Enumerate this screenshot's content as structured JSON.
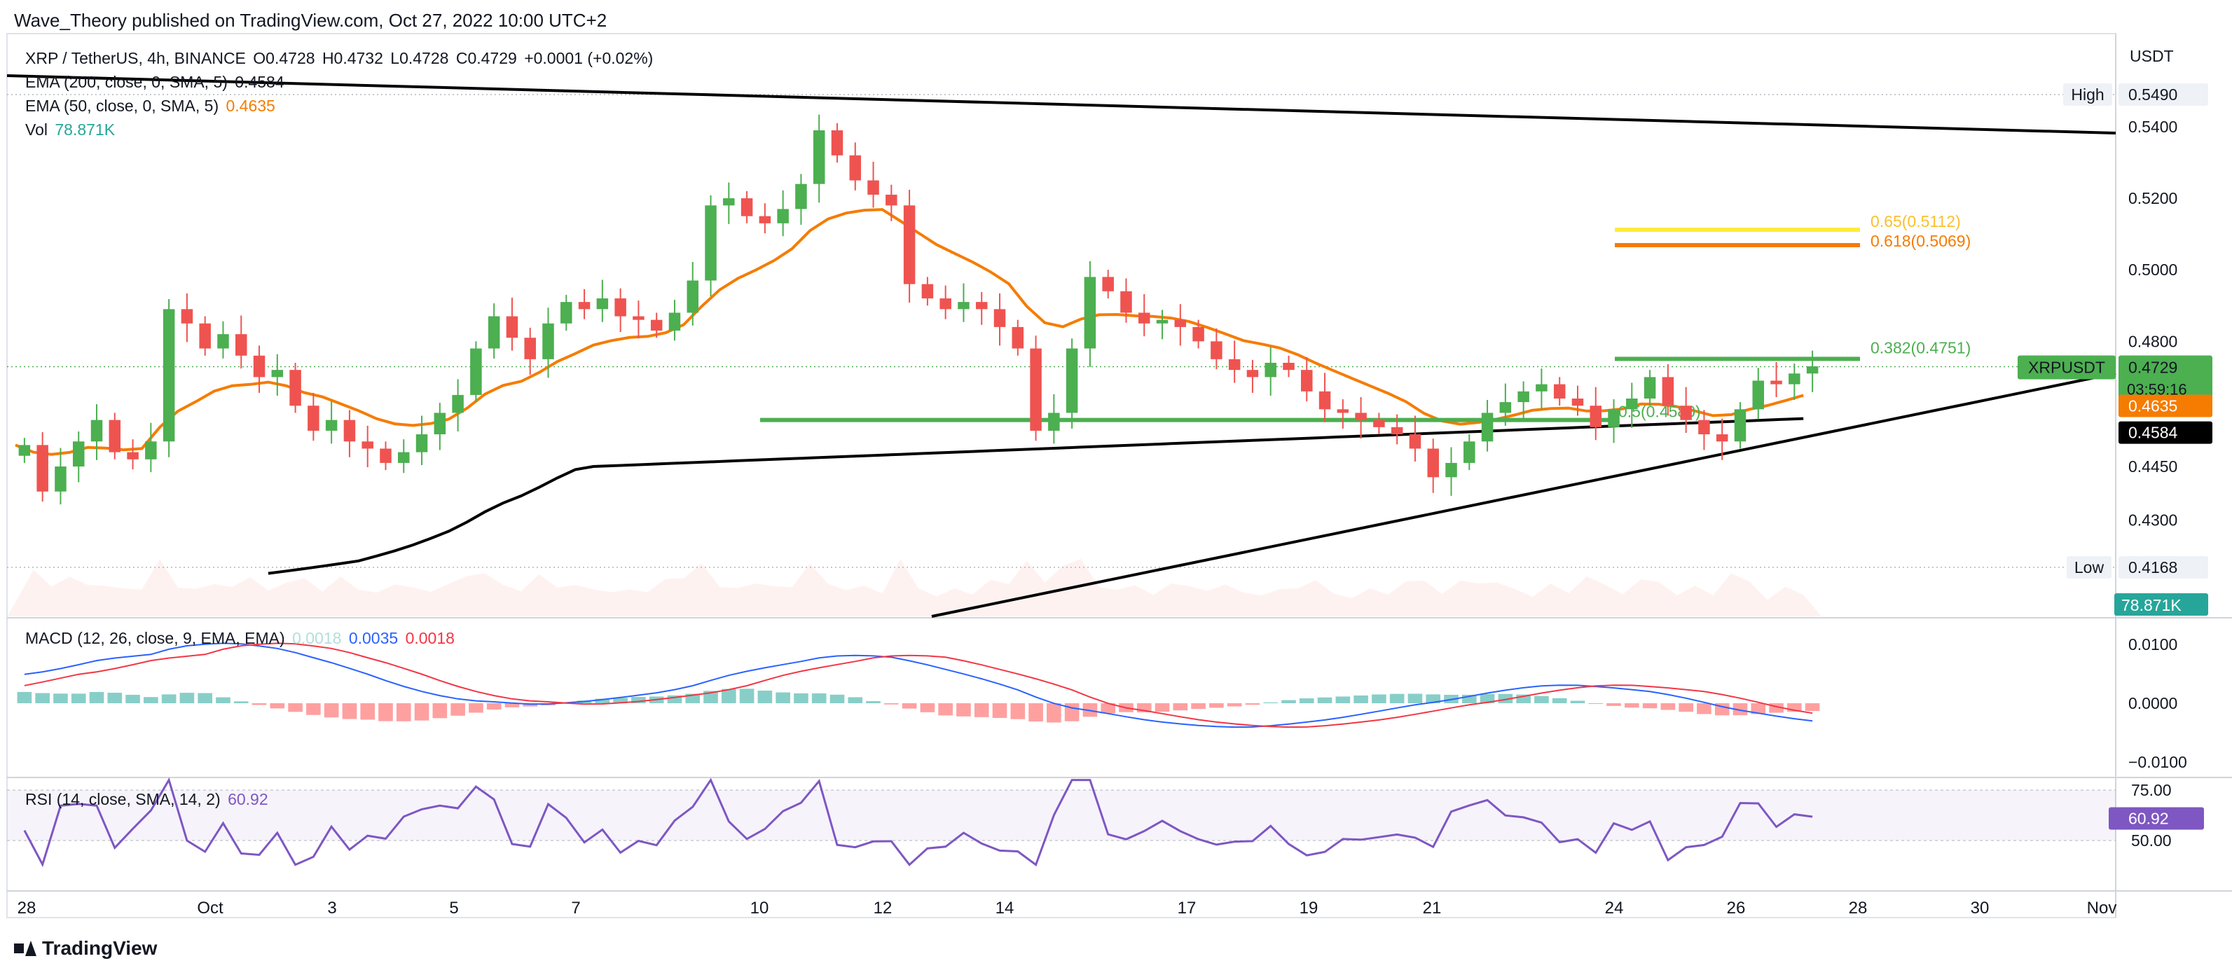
{
  "header": {
    "published": "Wave_Theory published on TradingView.com, Oct 27, 2022 10:00 UTC+2",
    "footer_brand": "TradingView"
  },
  "legend": {
    "symbol": "XRP / TetherUS, 4h, BINANCE",
    "o": "O0.4728",
    "h": "H0.4732",
    "l": "L0.4728",
    "c": "C0.4729",
    "chg": "+0.0001 (+0.02%)",
    "ema200": "EMA (200, close, 0, SMA, 5)",
    "ema200_val": "0.4584",
    "ema50": "EMA (50, close, 0, SMA, 5)",
    "ema50_val": "0.4635",
    "vol": "Vol",
    "vol_val": "78.871K",
    "macd": "MACD (12, 26, close, 9, EMA, EMA)",
    "macd_hist": "0.0018",
    "macd_line": "0.0035",
    "macd_signal": "0.0018",
    "rsi": "RSI (14, close, SMA, 14, 2)",
    "rsi_val": "60.92"
  },
  "price_axis": {
    "currency": "USDT",
    "ticks": [
      "0.5400",
      "0.5200",
      "0.5000",
      "0.4800",
      "0.4450",
      "0.4300"
    ],
    "high_label": "High",
    "high_val": "0.5490",
    "low_label": "Low",
    "low_val": "0.4168",
    "last_symbol": "XRPUSDT",
    "last_price": "0.4729",
    "countdown": "03:59:16",
    "ema50_tag": "0.4635",
    "ema200_tag": "0.4584",
    "vol_tag": "78.871K"
  },
  "macd_axis": {
    "ticks": [
      "0.0100",
      "0.0000",
      "−0.0100"
    ]
  },
  "rsi_axis": {
    "ticks": [
      "75.00",
      "50.00"
    ],
    "rsi_tag": "60.92"
  },
  "time_axis": {
    "ticks": [
      "28",
      "Oct",
      "3",
      "5",
      "7",
      "10",
      "12",
      "14",
      "17",
      "19",
      "21",
      "24",
      "26",
      "28",
      "30",
      "Nov"
    ]
  },
  "fib_labels": {
    "f065": "0.65(0.5112)",
    "f0618": "0.618(0.5069)",
    "f0382": "0.382(0.4751)",
    "f05": "0.5(0.4580)"
  },
  "colors": {
    "up": "#26a69a",
    "up_candle": "#4caf50",
    "down": "#ef5350",
    "ema50": "#f57c00",
    "ema200": "#000000",
    "fib_green": "#4caf50",
    "fib_yellow": "#ffeb3b",
    "fib_orange": "#f57c00",
    "macd_line": "#2962ff",
    "macd_signal": "#f23645",
    "rsi": "#7e57c2"
  },
  "chart_data": {
    "type": "candlestick",
    "title": "XRP / TetherUS, 4h, BINANCE",
    "x_range": [
      "Sep 27, 2022",
      "Nov 1, 2022"
    ],
    "ylim": [
      0.4168,
      0.549
    ],
    "series": [
      {
        "name": "EMA 200",
        "last": 0.4584
      },
      {
        "name": "EMA 50",
        "last": 0.4635
      }
    ],
    "ohlc_close_approx": [
      0.451,
      0.438,
      0.445,
      0.452,
      0.458,
      0.449,
      0.447,
      0.452,
      0.489,
      0.485,
      0.478,
      0.482,
      0.476,
      0.47,
      0.472,
      0.462,
      0.455,
      0.458,
      0.452,
      0.45,
      0.446,
      0.449,
      0.454,
      0.46,
      0.465,
      0.478,
      0.487,
      0.481,
      0.475,
      0.485,
      0.491,
      0.489,
      0.492,
      0.487,
      0.486,
      0.483,
      0.488,
      0.497,
      0.518,
      0.52,
      0.515,
      0.513,
      0.517,
      0.524,
      0.539,
      0.532,
      0.525,
      0.521,
      0.518,
      0.496,
      0.492,
      0.489,
      0.491,
      0.489,
      0.484,
      0.478,
      0.455,
      0.46,
      0.478,
      0.498,
      0.494,
      0.488,
      0.485,
      0.486,
      0.484,
      0.48,
      0.475,
      0.472,
      0.47,
      0.474,
      0.472,
      0.466,
      0.461,
      0.46,
      0.458,
      0.456,
      0.454,
      0.45,
      0.442,
      0.446,
      0.452,
      0.46,
      0.463,
      0.466,
      0.468,
      0.464,
      0.462,
      0.456,
      0.461,
      0.464,
      0.47,
      0.462,
      0.458,
      0.454,
      0.452,
      0.461,
      0.469,
      0.468,
      0.471,
      0.473
    ],
    "fib_levels": [
      {
        "label": "0.65",
        "value": 0.5112
      },
      {
        "label": "0.618",
        "value": 0.5069
      },
      {
        "label": "0.382",
        "value": 0.4751
      },
      {
        "label": "0.5",
        "value": 0.458
      }
    ],
    "macd": {
      "name": "MACD (12, 26, close, 9, EMA, EMA)",
      "ylim": [
        -0.01,
        0.01
      ],
      "histogram": 0.0018,
      "macd": 0.0035,
      "signal": 0.0018
    },
    "rsi": {
      "name": "RSI (14, close, SMA, 14, 2)",
      "band": [
        50,
        75
      ],
      "value": 60.92
    },
    "volume_last": "78.871K"
  }
}
